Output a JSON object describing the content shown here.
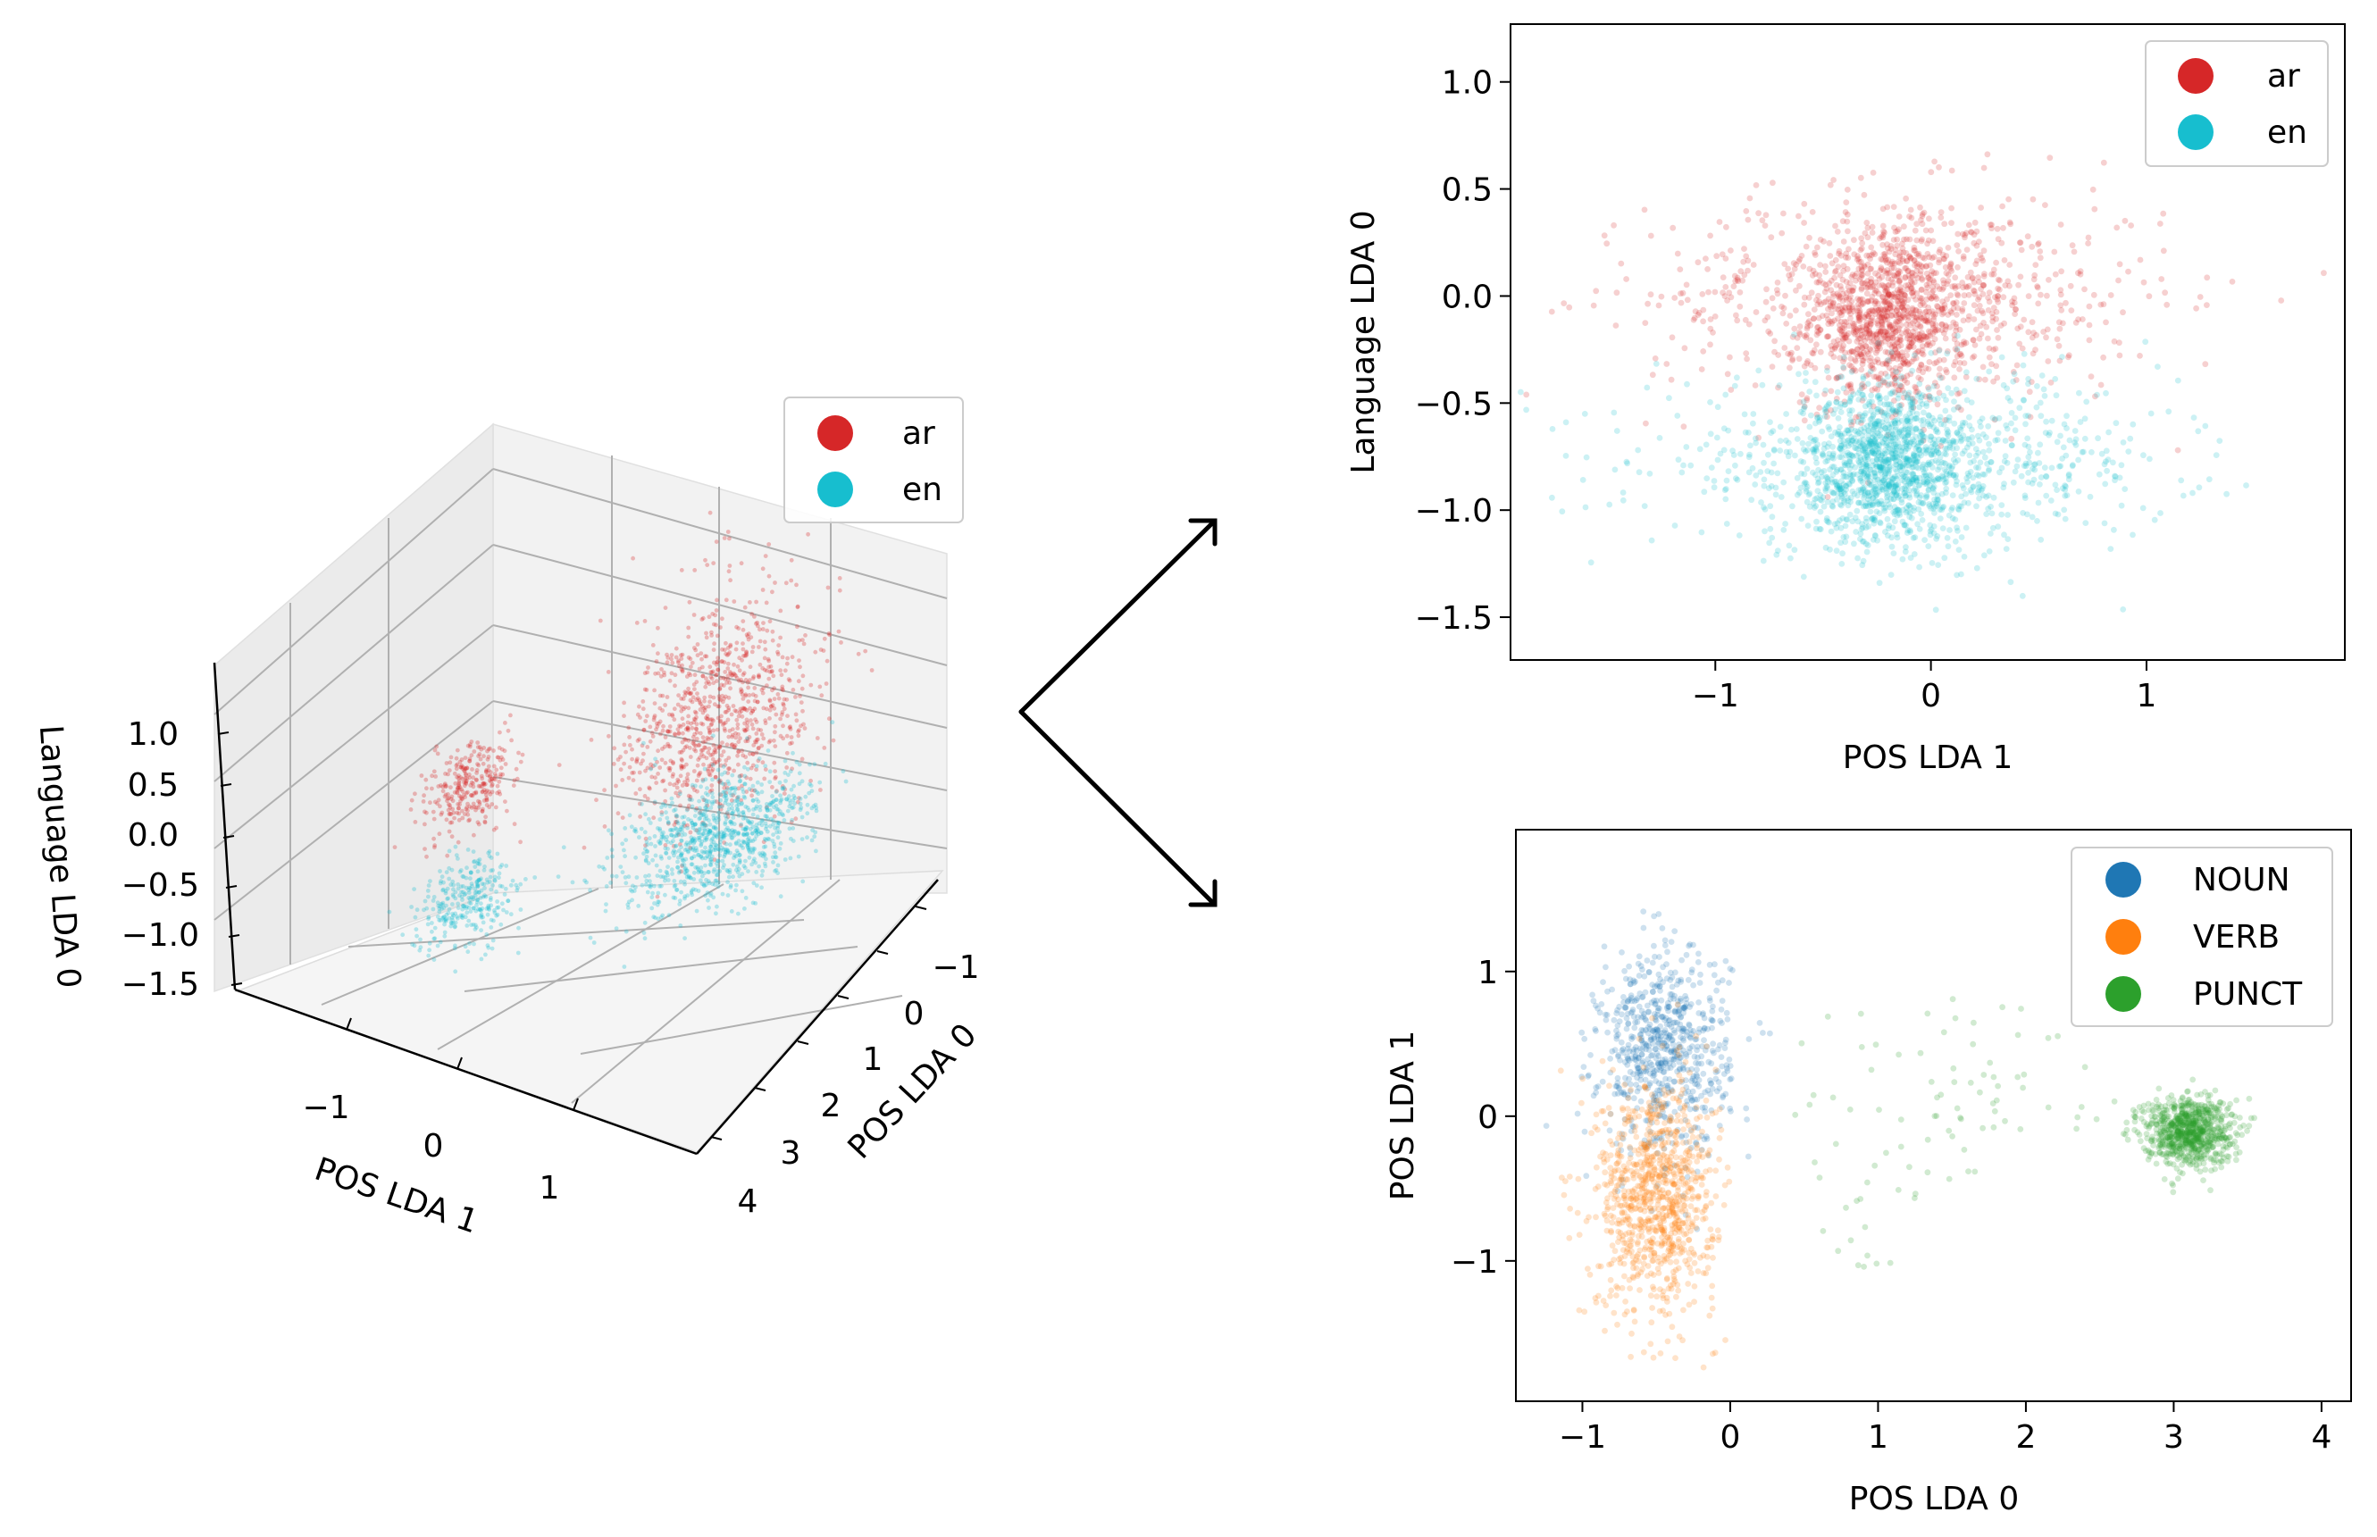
{
  "colors": {
    "ar": "#d62728",
    "en": "#17becf",
    "NOUN": "#1f77b4",
    "VERB": "#ff7f0e",
    "PUNCT": "#2ca02c"
  },
  "chart_data": [
    {
      "id": "3d",
      "type": "scatter",
      "projection": "3d",
      "xlabel": "POS LDA 0",
      "ylabel": "POS LDA 1",
      "zlabel": "Language LDA 0",
      "x_ticks": [
        "−1",
        "0",
        "1",
        "2",
        "3",
        "4"
      ],
      "y_ticks": [
        "−1",
        "0",
        "1"
      ],
      "z_ticks": [
        "1.0",
        "0.5",
        "0.0",
        "−0.5",
        "−1.0",
        "−1.5"
      ],
      "legend": [
        "ar",
        "en"
      ],
      "series": [
        {
          "name": "ar",
          "clusters": [
            {
              "pos0": 3.1,
              "pos1": -0.1,
              "lang": 0.05,
              "sd": [
                0.3,
                0.6,
                0.35
              ],
              "n": 900
            },
            {
              "pos0": -0.6,
              "pos1": -0.1,
              "lang": 0.0,
              "sd": [
                0.25,
                0.25,
                0.15
              ],
              "n": 300
            }
          ]
        },
        {
          "name": "en",
          "clusters": [
            {
              "pos0": 3.1,
              "pos1": -0.1,
              "lang": -0.75,
              "sd": [
                0.3,
                0.6,
                0.2
              ],
              "n": 900
            },
            {
              "pos0": -0.6,
              "pos1": -0.1,
              "lang": -0.75,
              "sd": [
                0.25,
                0.25,
                0.15
              ],
              "n": 300
            }
          ]
        }
      ]
    },
    {
      "id": "lang",
      "type": "scatter",
      "xlabel": "POS LDA 1",
      "ylabel": "Language LDA 0",
      "xlim": [
        -1.95,
        1.92
      ],
      "ylim": [
        -1.7,
        1.27
      ],
      "x_ticks": [
        {
          "v": -1,
          "label": "−1"
        },
        {
          "v": 0,
          "label": "0"
        },
        {
          "v": 1,
          "label": "1"
        }
      ],
      "y_ticks": [
        {
          "v": 1.0,
          "label": "1.0"
        },
        {
          "v": 0.5,
          "label": "0.5"
        },
        {
          "v": 0.0,
          "label": "0.0"
        },
        {
          "v": -0.5,
          "label": "−0.5"
        },
        {
          "v": -1.0,
          "label": "−1.0"
        },
        {
          "v": -1.5,
          "label": "−1.5"
        }
      ],
      "legend": [
        "ar",
        "en"
      ],
      "series": [
        {
          "name": "ar",
          "clusters": [
            {
              "x": -0.2,
              "y": -0.1,
              "sdx": 0.18,
              "sdy": 0.2,
              "n": 900
            },
            {
              "x": -0.1,
              "y": 0.0,
              "sdx": 0.6,
              "sdy": 0.25,
              "n": 700
            }
          ]
        },
        {
          "name": "en",
          "clusters": [
            {
              "x": -0.2,
              "y": -0.78,
              "sdx": 0.18,
              "sdy": 0.18,
              "n": 900
            },
            {
              "x": -0.1,
              "y": -0.78,
              "sdx": 0.6,
              "sdy": 0.2,
              "n": 800
            }
          ]
        }
      ]
    },
    {
      "id": "pos",
      "type": "scatter",
      "xlabel": "POS LDA 0",
      "ylabel": "POS LDA 1",
      "xlim": [
        -1.45,
        4.2
      ],
      "ylim": [
        -1.97,
        1.98
      ],
      "x_ticks": [
        {
          "v": -1,
          "label": "−1"
        },
        {
          "v": 0,
          "label": "0"
        },
        {
          "v": 1,
          "label": "1"
        },
        {
          "v": 2,
          "label": "2"
        },
        {
          "v": 3,
          "label": "3"
        },
        {
          "v": 4,
          "label": "4"
        }
      ],
      "y_ticks": [
        {
          "v": 1,
          "label": "1"
        },
        {
          "v": 0,
          "label": "0"
        },
        {
          "v": -1,
          "label": "−1"
        }
      ],
      "legend": [
        "NOUN",
        "VERB",
        "PUNCT"
      ],
      "series": [
        {
          "name": "NOUN",
          "clusters": [
            {
              "x": -0.45,
              "y": 0.45,
              "sdx": 0.22,
              "sdy": 0.35,
              "n": 700
            }
          ]
        },
        {
          "name": "VERB",
          "clusters": [
            {
              "x": -0.5,
              "y": -0.55,
              "sdx": 0.2,
              "sdy": 0.4,
              "n": 900
            }
          ]
        },
        {
          "name": "PUNCT",
          "clusters": [
            {
              "x": 3.1,
              "y": -0.1,
              "sdx": 0.15,
              "sdy": 0.12,
              "n": 800
            },
            {
              "x": 1.6,
              "y": 0.1,
              "sdx": 0.55,
              "sdy": 0.35,
              "n": 70
            },
            {
              "x": 0.85,
              "y": -0.6,
              "sdx": 0.15,
              "sdy": 0.35,
              "n": 20
            }
          ]
        }
      ]
    }
  ]
}
